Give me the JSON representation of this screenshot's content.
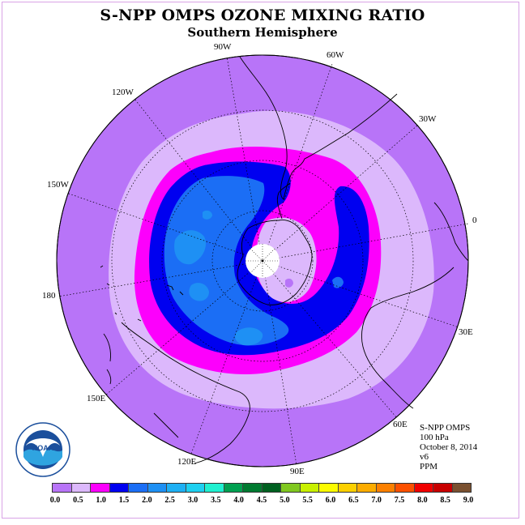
{
  "title": "S-NPP OMPS OZONE MIXING RATIO",
  "subtitle": "Southern Hemisphere",
  "longitude_labels": {
    "w90": "90W",
    "w60": "60W",
    "w30": "30W",
    "e0": "0",
    "e30": "30E",
    "e60": "60E",
    "e90": "90E",
    "e120": "120E",
    "e150": "150E",
    "d180": "180",
    "w150": "150W",
    "w120": "120W"
  },
  "info": {
    "instrument": "S-NPP OMPS",
    "level": "100 hPa",
    "date": "October 8, 2014",
    "version": "v6",
    "units": "PPM"
  },
  "logo_text": "NOAA",
  "colorbar": {
    "colors": [
      "#b874f8",
      "#dcb8fc",
      "#fc00fc",
      "#0000f0",
      "#1b6ef5",
      "#1e90f4",
      "#1eb0f4",
      "#1ed0f0",
      "#20f0d0",
      "#00a050",
      "#007a30",
      "#006020",
      "#80c820",
      "#c8f000",
      "#fcfc00",
      "#fcd000",
      "#fcac00",
      "#fc8000",
      "#fc5000",
      "#f00000",
      "#c80000",
      "#7a5030"
    ],
    "tick_labels": [
      "0.0",
      "0.5",
      "1.0",
      "1.5",
      "2.0",
      "2.5",
      "3.0",
      "3.5",
      "4.0",
      "4.5",
      "5.0",
      "5.5",
      "6.0",
      "6.5",
      "7.0",
      "7.5",
      "8.0",
      "8.5",
      "9.0"
    ]
  },
  "colors": {
    "background_field": "#b874f8",
    "level_0_5": "#dcb8fc",
    "level_1_0": "#fc00fc",
    "level_1_5": "#0000f0",
    "level_2_0": "#1b6ef5",
    "level_2_5": "#1e90f4",
    "pole_fill": "#ffffff"
  }
}
